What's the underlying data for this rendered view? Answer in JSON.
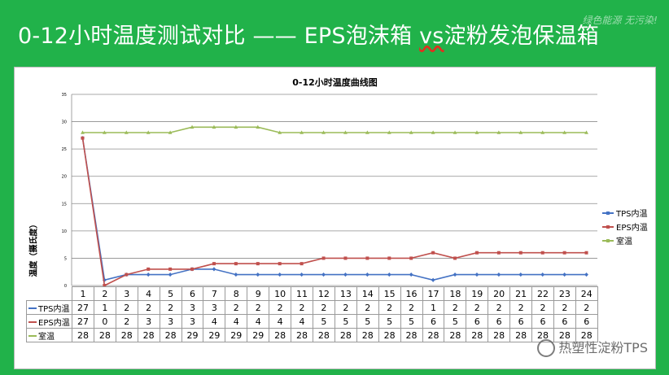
{
  "slide": {
    "title_pre": "0-12小时温度测试对比 —— EPS泡沫箱 ",
    "title_vs": "vs",
    "title_post": "淀粉发泡保温箱",
    "watermark_top": "绿色能源 无污染!",
    "watermark_bottom": "热塑性淀粉TPS"
  },
  "chart_data": {
    "type": "line",
    "title": "0-12小时温度曲线图",
    "ylabel": "温度（摄氏度）",
    "xlabel": "",
    "ylim": [
      0,
      35
    ],
    "yticks": [
      0,
      5,
      10,
      15,
      20,
      25,
      30,
      35
    ],
    "grid": true,
    "legend_position": "right",
    "categories": [
      "1",
      "2",
      "3",
      "4",
      "5",
      "6",
      "7",
      "8",
      "9",
      "10",
      "11",
      "12",
      "13",
      "14",
      "15",
      "16",
      "17",
      "18",
      "19",
      "20",
      "21",
      "22",
      "23",
      "24"
    ],
    "series": [
      {
        "name": "TPS内温",
        "color": "#4472c4",
        "marker": "diamond",
        "values": [
          27,
          1,
          2,
          2,
          2,
          3,
          3,
          2,
          2,
          2,
          2,
          2,
          2,
          2,
          2,
          2,
          1,
          2,
          2,
          2,
          2,
          2,
          2,
          2
        ]
      },
      {
        "name": "EPS内温",
        "color": "#c0504d",
        "marker": "square",
        "values": [
          27,
          0,
          2,
          3,
          3,
          3,
          4,
          4,
          4,
          4,
          4,
          5,
          5,
          5,
          5,
          5,
          6,
          5,
          6,
          6,
          6,
          6,
          6,
          6
        ]
      },
      {
        "name": "室温",
        "color": "#9bbb59",
        "marker": "triangle",
        "values": [
          28,
          28,
          28,
          28,
          28,
          29,
          29,
          29,
          29,
          28,
          28,
          28,
          28,
          28,
          28,
          28,
          28,
          28,
          28,
          28,
          28,
          28,
          28,
          28
        ]
      }
    ]
  }
}
